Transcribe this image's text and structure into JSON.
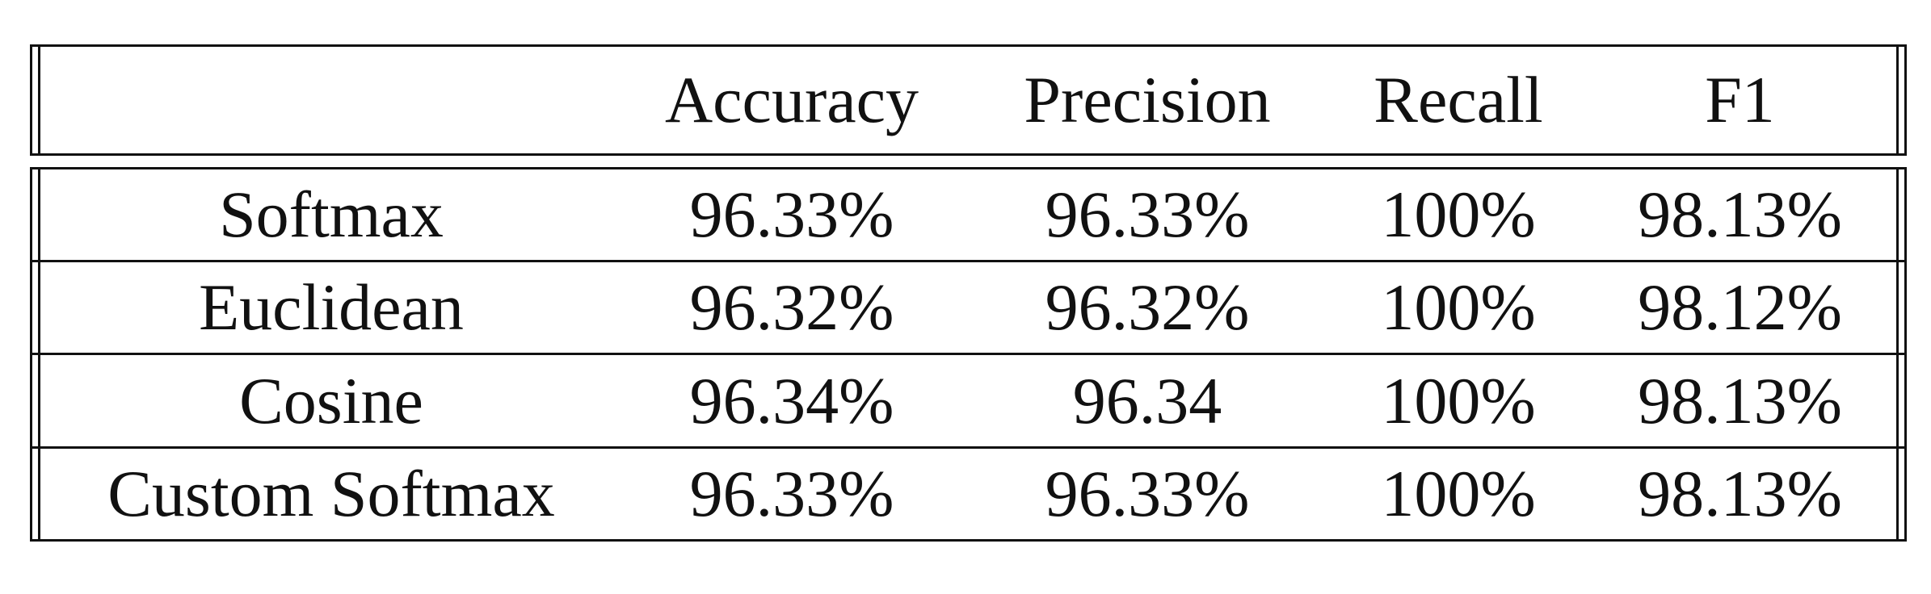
{
  "table": {
    "columns": [
      "",
      "Accuracy",
      "Precision",
      "Recall",
      "F1"
    ],
    "rows": [
      {
        "label": "Softmax",
        "accuracy": "96.33%",
        "precision": "96.33%",
        "recall": "100%",
        "f1": "98.13%"
      },
      {
        "label": "Euclidean",
        "accuracy": "96.32%",
        "precision": "96.32%",
        "recall": "100%",
        "f1": "98.12%"
      },
      {
        "label": "Cosine",
        "accuracy": "96.34%",
        "precision": "96.34",
        "recall": "100%",
        "f1": "98.13%"
      },
      {
        "label": "Custom Softmax",
        "accuracy": "96.33%",
        "precision": "96.33%",
        "recall": "100%",
        "f1": "98.13%"
      }
    ]
  }
}
